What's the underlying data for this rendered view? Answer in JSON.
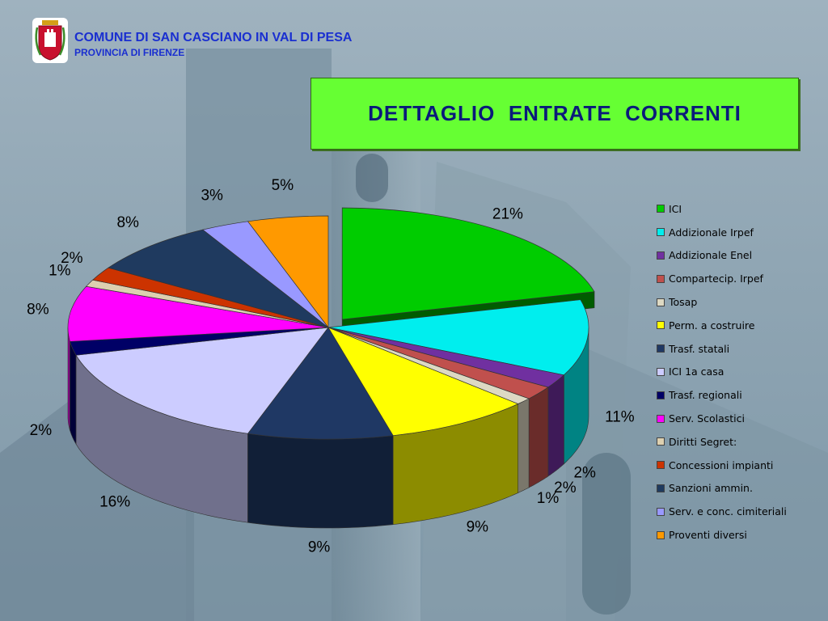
{
  "header": {
    "org_name": "COMUNE DI SAN CASCIANO IN VAL DI PESA",
    "org_sub": "PROVINCIA  DI FIRENZE"
  },
  "chart_data": {
    "type": "pie",
    "title": "DETTAGLIO  ENTRATE  CORRENTI",
    "legend_position": "right",
    "slices": [
      {
        "name": "ICI",
        "value": 21,
        "label": "21%",
        "color": "#00cc00"
      },
      {
        "name": "Addizionale Irpef",
        "value": 11,
        "label": "11%",
        "color": "#00eeee"
      },
      {
        "name": "Addizionale Enel",
        "value": 2,
        "label": "2%",
        "color": "#7030a0"
      },
      {
        "name": "Compartecip. Irpef",
        "value": 2,
        "label": "2%",
        "color": "#c0504d"
      },
      {
        "name": "Tosap",
        "value": 1,
        "label": "1%",
        "color": "#ddd9c3"
      },
      {
        "name": "Perm. a costruire",
        "value": 9,
        "label": "9%",
        "color": "#ffff00"
      },
      {
        "name": "Trasf. statali",
        "value": 9,
        "label": "9%",
        "color": "#1f3864"
      },
      {
        "name": "ICI 1a casa",
        "value": 16,
        "label": "16%",
        "color": "#ccccff"
      },
      {
        "name": "Trasf. regionali",
        "value": 2,
        "label": "2%",
        "color": "#000066"
      },
      {
        "name": "Serv. Scolastici",
        "value": 8,
        "label": "8%",
        "color": "#ff00ff"
      },
      {
        "name": "Diritti Segret:",
        "value": 1,
        "label": "1%",
        "color": "#ddd0b0"
      },
      {
        "name": "Concessioni impianti",
        "value": 2,
        "label": "2%",
        "color": "#cc3300"
      },
      {
        "name": "Sanzioni ammin.",
        "value": 8,
        "label": "8%",
        "color": "#1f3a5f"
      },
      {
        "name": "Serv.  e conc. cimiteriali",
        "value": 3,
        "label": "3%",
        "color": "#9999ff"
      },
      {
        "name": "Proventi diversi",
        "value": 5,
        "label": "5%",
        "color": "#ff9900"
      }
    ]
  }
}
